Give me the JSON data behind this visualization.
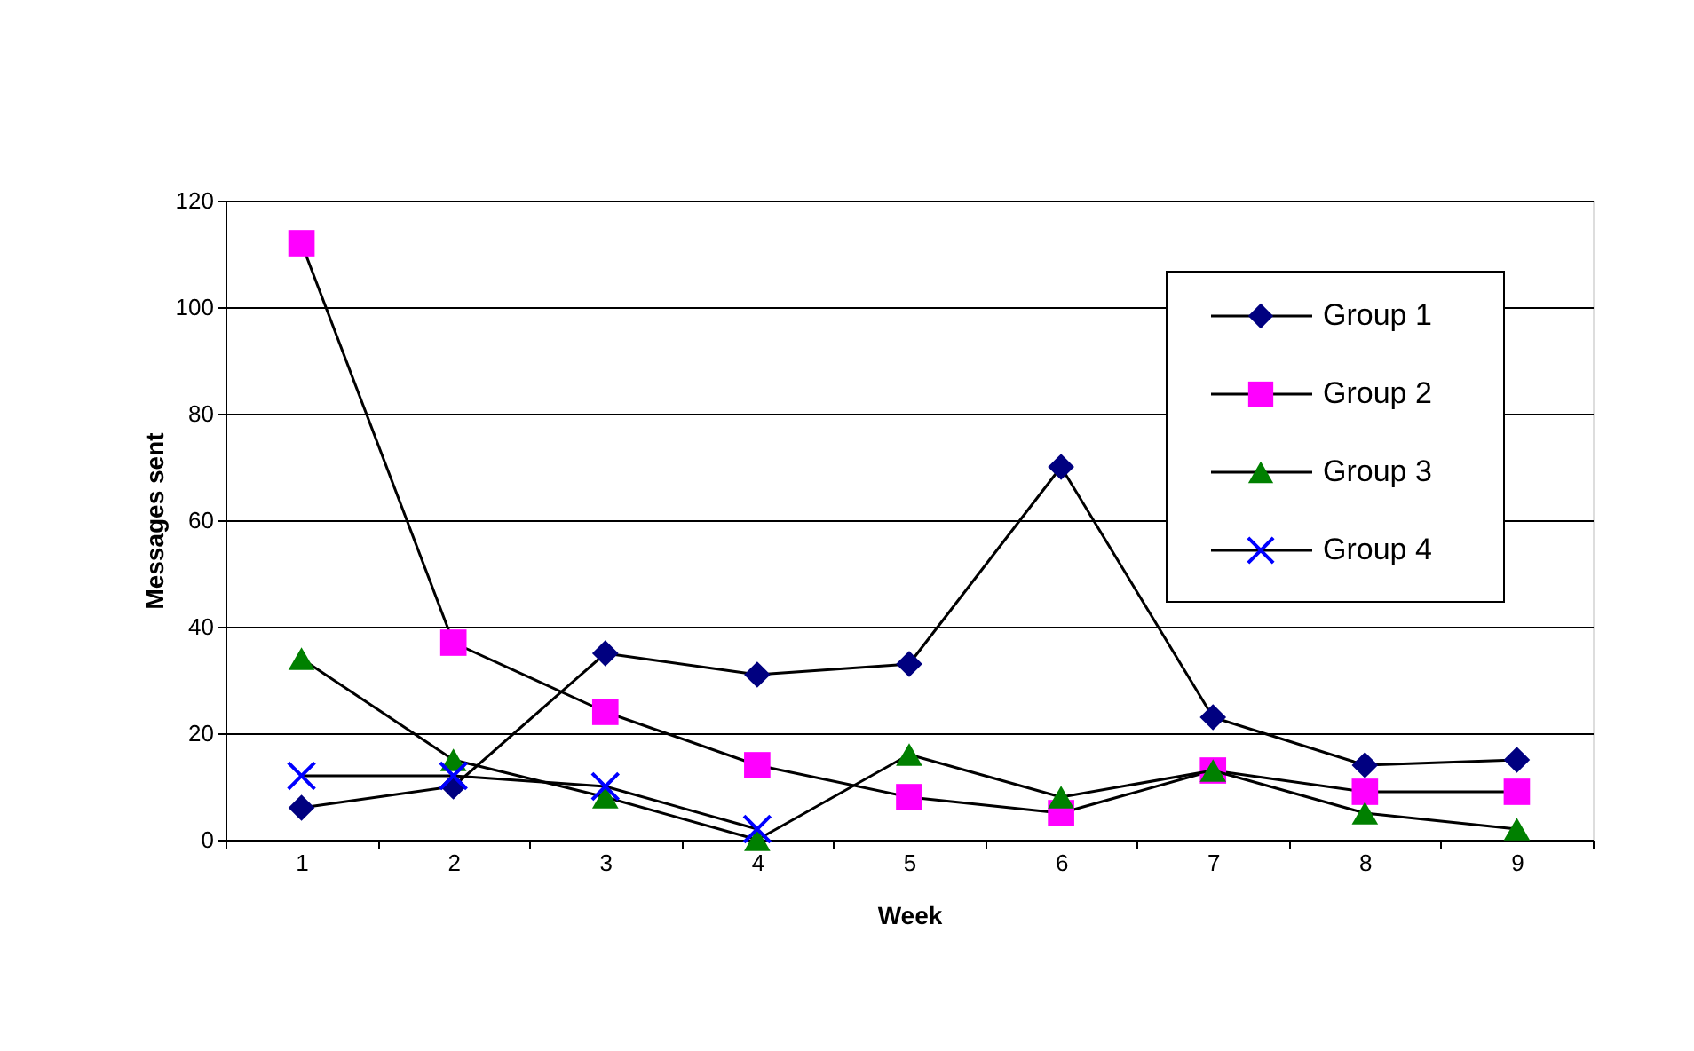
{
  "chart_data": {
    "type": "line",
    "xlabel": "Week",
    "ylabel": "Messages sent",
    "categories": [
      "1",
      "2",
      "3",
      "4",
      "5",
      "6",
      "7",
      "8",
      "9"
    ],
    "series": [
      {
        "name": "Group 1",
        "color": "#000080",
        "marker": "diamond",
        "values": [
          6,
          10,
          35,
          31,
          33,
          70,
          23,
          14,
          15
        ]
      },
      {
        "name": "Group 2",
        "color": "#ff00ff",
        "marker": "square",
        "values": [
          112,
          37,
          24,
          14,
          8,
          5,
          13,
          9,
          9
        ]
      },
      {
        "name": "Group 3",
        "color": "#008000",
        "marker": "triangle",
        "values": [
          34,
          15,
          8,
          0,
          16,
          8,
          13,
          5,
          2
        ]
      },
      {
        "name": "Group 4",
        "color": "#0000ff",
        "marker": "cross",
        "values": [
          12,
          12,
          10,
          2,
          null,
          null,
          null,
          null,
          null
        ]
      }
    ],
    "ylim": [
      0,
      120
    ],
    "yticks": [
      0,
      20,
      40,
      60,
      80,
      100,
      120
    ],
    "grid": "y",
    "legend": "top right",
    "line_style": "solid"
  }
}
